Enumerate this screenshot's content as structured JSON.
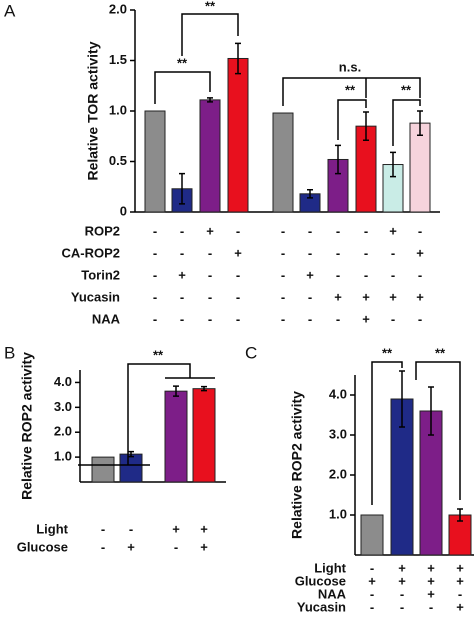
{
  "chart_data": [
    {
      "type": "bar",
      "panel": "A",
      "ylabel": "Relative TOR activity",
      "ylim": [
        0,
        2
      ],
      "yticks": [
        0,
        0.5,
        {
          "value": 1,
          "label": "1.0"
        },
        1.5,
        {
          "value": 2,
          "label": "2.0"
        }
      ],
      "values": [
        1.0,
        0.23,
        1.11,
        1.52,
        0.98,
        0.18,
        0.52,
        0.85,
        0.47,
        0.88
      ],
      "errors": [
        null,
        0.15,
        0.02,
        0.15,
        null,
        0.04,
        0.14,
        0.14,
        0.12,
        0.12
      ],
      "colors": [
        "#8c8c8c",
        "#1f2a87",
        "#7d1e88",
        "#e8101e",
        "#8c8c8c",
        "#1f2a87",
        "#7d1e88",
        "#e8101e",
        "#c9ece6",
        "#f6d3dc"
      ],
      "conditions": [
        {
          "name": "ROP2",
          "signs": [
            "-",
            "-",
            "+",
            "-",
            "-",
            "-",
            "-",
            "-",
            "+",
            "-"
          ]
        },
        {
          "name": "CA-ROP2",
          "signs": [
            "-",
            "-",
            "-",
            "+",
            "-",
            "-",
            "-",
            "-",
            "-",
            "+"
          ]
        },
        {
          "name": "Torin2",
          "signs": [
            "-",
            "+",
            "-",
            "-",
            "-",
            "+",
            "-",
            "-",
            "-",
            "-"
          ]
        },
        {
          "name": "Yucasin",
          "signs": [
            "-",
            "-",
            "-",
            "-",
            "-",
            "-",
            "+",
            "+",
            "+",
            "+"
          ]
        },
        {
          "name": "NAA",
          "signs": [
            "-",
            "-",
            "-",
            "-",
            "-",
            "-",
            "-",
            "+",
            "-",
            "-"
          ]
        }
      ],
      "annotations": [
        "**",
        "**",
        "n.s.",
        "**",
        "**"
      ]
    },
    {
      "type": "bar",
      "panel": "B",
      "ylabel": "Relative ROP2 activity",
      "ylim": [
        0,
        4.5
      ],
      "yticks": [
        {
          "value": 1,
          "label": "1.0"
        },
        {
          "value": 2,
          "label": "2.0"
        },
        {
          "value": 3,
          "label": "3.0"
        },
        {
          "value": 4,
          "label": "4.0"
        }
      ],
      "values": [
        1.0,
        1.12,
        3.65,
        3.75
      ],
      "errors": [
        null,
        0.1,
        0.2,
        0.08
      ],
      "colors": [
        "#8c8c8c",
        "#1f2a87",
        "#7d1e88",
        "#e8101e"
      ],
      "conditions": [
        {
          "name": "Light",
          "signs": [
            "-",
            "-",
            "+",
            "+"
          ]
        },
        {
          "name": "Glucose",
          "signs": [
            "-",
            "+",
            "-",
            "+"
          ]
        }
      ],
      "annotations": [
        "**"
      ]
    },
    {
      "type": "bar",
      "panel": "C",
      "ylabel": "Relative ROP2 activity",
      "ylim": [
        0,
        4.5
      ],
      "yticks": [
        {
          "value": 1,
          "label": "1.0"
        },
        {
          "value": 2,
          "label": "2.0"
        },
        {
          "value": 3,
          "label": "3.0"
        },
        {
          "value": 4,
          "label": "4.0"
        }
      ],
      "values": [
        1.0,
        3.9,
        3.6,
        1.0
      ],
      "errors": [
        null,
        0.7,
        0.6,
        0.15
      ],
      "colors": [
        "#8c8c8c",
        "#1f2a87",
        "#7d1e88",
        "#e8101e"
      ],
      "conditions": [
        {
          "name": "Light",
          "signs": [
            "-",
            "+",
            "+",
            "+"
          ]
        },
        {
          "name": "Glucose",
          "signs": [
            "+",
            "+",
            "+",
            "+"
          ]
        },
        {
          "name": "NAA",
          "signs": [
            "-",
            "-",
            "+",
            "-"
          ]
        },
        {
          "name": "Yucasin",
          "signs": [
            "-",
            "-",
            "-",
            "+"
          ]
        }
      ],
      "annotations": [
        "**",
        "**"
      ]
    }
  ]
}
